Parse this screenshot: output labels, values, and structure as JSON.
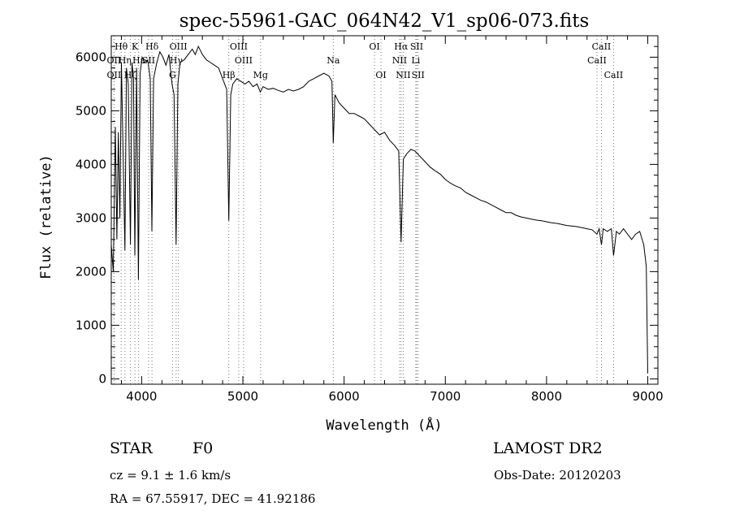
{
  "chart_data": {
    "type": "line",
    "title": "spec-55961-GAC_064N42_V1_sp06-073.fits",
    "xlabel": "Wavelength (Å)",
    "ylabel": "Flux (relative)",
    "xlim": [
      3700,
      9100
    ],
    "ylim": [
      -100,
      6400
    ],
    "x_ticks": [
      4000,
      5000,
      6000,
      7000,
      8000,
      9000
    ],
    "y_ticks": [
      0,
      1000,
      2000,
      3000,
      4000,
      5000,
      6000
    ],
    "grid": false,
    "series": [
      {
        "values": [
          [
            3700,
            2500
          ],
          [
            3720,
            2000
          ],
          [
            3740,
            4700
          ],
          [
            3755,
            2600
          ],
          [
            3770,
            4600
          ],
          [
            3785,
            3000
          ],
          [
            3800,
            5900
          ],
          [
            3815,
            4400
          ],
          [
            3835,
            2400
          ],
          [
            3850,
            5800
          ],
          [
            3868,
            5500
          ],
          [
            3889,
            2500
          ],
          [
            3905,
            5900
          ],
          [
            3920,
            5600
          ],
          [
            3933,
            2300
          ],
          [
            3950,
            5800
          ],
          [
            3968,
            1850
          ],
          [
            3985,
            5700
          ],
          [
            4005,
            6000
          ],
          [
            4030,
            5900
          ],
          [
            4060,
            5950
          ],
          [
            4085,
            5600
          ],
          [
            4101,
            2750
          ],
          [
            4118,
            5600
          ],
          [
            4150,
            5900
          ],
          [
            4180,
            6100
          ],
          [
            4210,
            6000
          ],
          [
            4240,
            5850
          ],
          [
            4270,
            6050
          ],
          [
            4300,
            5500
          ],
          [
            4320,
            5300
          ],
          [
            4340,
            2500
          ],
          [
            4358,
            5500
          ],
          [
            4380,
            5900
          ],
          [
            4420,
            5950
          ],
          [
            4460,
            6050
          ],
          [
            4500,
            6150
          ],
          [
            4530,
            6050
          ],
          [
            4560,
            6200
          ],
          [
            4600,
            6050
          ],
          [
            4640,
            5950
          ],
          [
            4680,
            5900
          ],
          [
            4720,
            5850
          ],
          [
            4760,
            5800
          ],
          [
            4800,
            5600
          ],
          [
            4840,
            5400
          ],
          [
            4861,
            2950
          ],
          [
            4880,
            5300
          ],
          [
            4900,
            5500
          ],
          [
            4940,
            5600
          ],
          [
            4980,
            5550
          ],
          [
            5020,
            5500
          ],
          [
            5060,
            5550
          ],
          [
            5100,
            5450
          ],
          [
            5140,
            5500
          ],
          [
            5172,
            5350
          ],
          [
            5200,
            5450
          ],
          [
            5250,
            5400
          ],
          [
            5300,
            5420
          ],
          [
            5350,
            5380
          ],
          [
            5400,
            5350
          ],
          [
            5450,
            5400
          ],
          [
            5500,
            5370
          ],
          [
            5550,
            5400
          ],
          [
            5600,
            5450
          ],
          [
            5650,
            5550
          ],
          [
            5700,
            5600
          ],
          [
            5750,
            5650
          ],
          [
            5800,
            5700
          ],
          [
            5850,
            5650
          ],
          [
            5880,
            5550
          ],
          [
            5893,
            4400
          ],
          [
            5910,
            5300
          ],
          [
            5950,
            5150
          ],
          [
            6000,
            5050
          ],
          [
            6050,
            4950
          ],
          [
            6100,
            4950
          ],
          [
            6150,
            4900
          ],
          [
            6200,
            4850
          ],
          [
            6250,
            4750
          ],
          [
            6300,
            4650
          ],
          [
            6350,
            4550
          ],
          [
            6400,
            4600
          ],
          [
            6450,
            4450
          ],
          [
            6500,
            4350
          ],
          [
            6540,
            4250
          ],
          [
            6563,
            2550
          ],
          [
            6585,
            4100
          ],
          [
            6620,
            4200
          ],
          [
            6660,
            4280
          ],
          [
            6700,
            4250
          ],
          [
            6750,
            4150
          ],
          [
            6800,
            4050
          ],
          [
            6850,
            3950
          ],
          [
            6900,
            3880
          ],
          [
            6950,
            3820
          ],
          [
            7000,
            3720
          ],
          [
            7050,
            3650
          ],
          [
            7100,
            3600
          ],
          [
            7150,
            3560
          ],
          [
            7200,
            3480
          ],
          [
            7250,
            3430
          ],
          [
            7300,
            3380
          ],
          [
            7350,
            3330
          ],
          [
            7400,
            3300
          ],
          [
            7450,
            3250
          ],
          [
            7500,
            3200
          ],
          [
            7550,
            3150
          ],
          [
            7600,
            3100
          ],
          [
            7650,
            3100
          ],
          [
            7700,
            3050
          ],
          [
            7750,
            3020
          ],
          [
            7800,
            3000
          ],
          [
            7850,
            2980
          ],
          [
            7900,
            2960
          ],
          [
            7950,
            2950
          ],
          [
            8000,
            2930
          ],
          [
            8050,
            2910
          ],
          [
            8100,
            2900
          ],
          [
            8150,
            2880
          ],
          [
            8200,
            2860
          ],
          [
            8250,
            2850
          ],
          [
            8300,
            2840
          ],
          [
            8350,
            2820
          ],
          [
            8400,
            2800
          ],
          [
            8450,
            2780
          ],
          [
            8498,
            2700
          ],
          [
            8520,
            2800
          ],
          [
            8542,
            2500
          ],
          [
            8560,
            2800
          ],
          [
            8600,
            2750
          ],
          [
            8640,
            2800
          ],
          [
            8662,
            2300
          ],
          [
            8690,
            2750
          ],
          [
            8720,
            2700
          ],
          [
            8760,
            2800
          ],
          [
            8800,
            2700
          ],
          [
            8840,
            2600
          ],
          [
            8880,
            2700
          ],
          [
            8920,
            2750
          ],
          [
            8960,
            2500
          ],
          [
            8985,
            2100
          ],
          [
            9000,
            100
          ]
        ]
      }
    ],
    "lines": [
      {
        "label": "Hθ",
        "x": 3798,
        "row": 1
      },
      {
        "label": "OII",
        "x": 3727,
        "row": 2
      },
      {
        "label": "Hη",
        "x": 3835,
        "row": 2
      },
      {
        "label": "OII",
        "x": 3727,
        "row": 3
      },
      {
        "label": "Hζ",
        "x": 3889,
        "row": 3
      },
      {
        "label": "K",
        "x": 3934,
        "row": 1
      },
      {
        "label": "Hε",
        "x": 3970,
        "row": 2
      },
      {
        "label": "SII",
        "x": 4069,
        "row": 2
      },
      {
        "label": "Hδ",
        "x": 4102,
        "row": 1
      },
      {
        "label": "Hγ",
        "x": 4341,
        "row": 2
      },
      {
        "label": "G",
        "x": 4305,
        "row": 3
      },
      {
        "label": "OIII",
        "x": 4363,
        "row": 1
      },
      {
        "label": "Hβ",
        "x": 4861,
        "row": 3
      },
      {
        "label": "OIII",
        "x": 4959,
        "row": 1
      },
      {
        "label": "OIII",
        "x": 5007,
        "row": 2
      },
      {
        "label": "Mg",
        "x": 5175,
        "row": 3
      },
      {
        "label": "Na",
        "x": 5893,
        "row": 2
      },
      {
        "label": "OI",
        "x": 6300,
        "row": 1
      },
      {
        "label": "OI",
        "x": 6364,
        "row": 3
      },
      {
        "label": "Hα",
        "x": 6563,
        "row": 1
      },
      {
        "label": "NII",
        "x": 6548,
        "row": 2
      },
      {
        "label": "NII",
        "x": 6584,
        "row": 3
      },
      {
        "label": "SII",
        "x": 6717,
        "row": 1
      },
      {
        "label": "Li",
        "x": 6708,
        "row": 2
      },
      {
        "label": "SII",
        "x": 6731,
        "row": 3
      },
      {
        "label": "CaII",
        "x": 8542,
        "row": 1
      },
      {
        "label": "CaII",
        "x": 8498,
        "row": 2
      },
      {
        "label": "CaII",
        "x": 8662,
        "row": 3
      }
    ]
  },
  "info": {
    "class": "STAR",
    "subclass": "F0",
    "survey": "LAMOST DR2",
    "cz": "cz = 9.1 ± 1.6 km/s",
    "obs_date": "Obs-Date: 20120203",
    "coords": "RA =  67.55917, DEC =  41.92186"
  }
}
